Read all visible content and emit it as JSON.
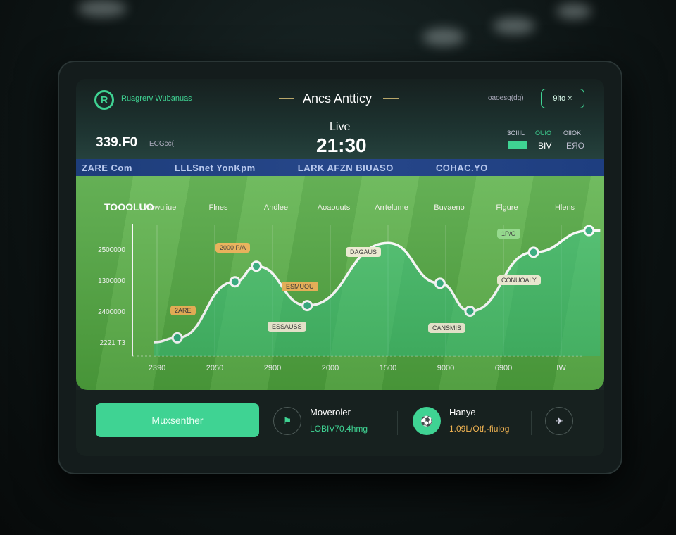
{
  "header": {
    "brand": "Ruagrerv Wubanuas",
    "title": "Ancs Antticy",
    "right_text": "oaoesq(dg)",
    "button_label": "9lto ×",
    "score_value": "339.F0",
    "score_sub": "ECGcc(",
    "live_label": "Live",
    "clock": "21:30",
    "stats": [
      {
        "label": "ЗOIIIL",
        "value": ""
      },
      {
        "label": "OUIO",
        "value": "BIV"
      },
      {
        "label": "OIIOK",
        "value": "ЕЯO"
      }
    ],
    "boards": [
      "ZARE Com",
      "LLLSnet  YonKpm",
      "LARK AFZN BIUASO",
      "COHAC.YO"
    ]
  },
  "colors": {
    "accent": "#3fd393",
    "orange": "#f0b352",
    "pitch": "#55ab43"
  },
  "chart_data": {
    "type": "area",
    "title": "TOOOLUO",
    "column_labels": [
      "Aowuiiue",
      "Flnes",
      "Andlee",
      "Aoaouuts",
      "Arrtelume",
      "Buvaeno",
      "Flgure",
      "Hlens"
    ],
    "y_tick_labels": [
      "2221 T3",
      "2400000",
      "1300000",
      "2500000"
    ],
    "x_tick_labels": [
      "2390",
      "2050",
      "2900",
      "2000",
      "1500",
      "9000",
      "6900",
      "IW"
    ],
    "y_scale_note": "values in units of y tick index",
    "points": [
      {
        "x": 0.35,
        "y": 0.14
      },
      {
        "x": 1.35,
        "y": 1.95
      },
      {
        "x": 1.72,
        "y": 2.45
      },
      {
        "x": 2.6,
        "y": 1.18
      },
      {
        "x": 4.0,
        "y": 3.2,
        "marker": false
      },
      {
        "x": 4.9,
        "y": 1.9
      },
      {
        "x": 5.42,
        "y": 1.0
      },
      {
        "x": 6.52,
        "y": 2.9
      },
      {
        "x": 7.48,
        "y": 3.6
      }
    ],
    "annotations": [
      "2000 P/A",
      "2ARE",
      "ESMUOU",
      "ESSAUSS",
      "DAGAUS",
      "CANSMIS",
      "1P/O",
      "CONUOALY"
    ],
    "grid": true,
    "legend": "none"
  },
  "bottom": {
    "cta_label": "Muxsenther",
    "items": [
      {
        "icon": "flag-icon",
        "title": "Moveroler",
        "sub": "LOBIV70.4hmg"
      },
      {
        "icon": "ball-icon",
        "title": "Hanye",
        "sub": "1.09L/Otf,-fiulog"
      }
    ],
    "end_icon": "share-icon"
  }
}
